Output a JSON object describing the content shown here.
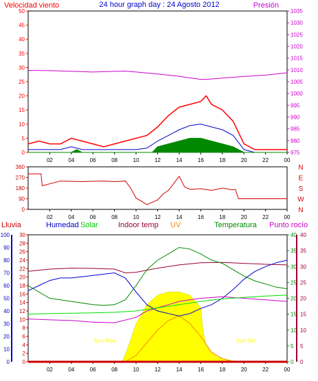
{
  "chart_data": [
    {
      "type": "line",
      "title": "24 hour graph day : 24 Agosto 2012",
      "y_left_label": "Velocidad viento",
      "y_right_label": "Presión",
      "y_left_ticks": [
        0,
        5,
        10,
        15,
        20,
        25,
        30,
        35,
        40,
        45,
        50
      ],
      "y_right_ticks": [
        975,
        980,
        985,
        990,
        995,
        1000,
        1005,
        1010,
        1015,
        1020,
        1025,
        1030,
        1035
      ],
      "ylim_left": [
        0,
        50
      ],
      "ylim_right": [
        975,
        1035
      ],
      "x_ticks": [
        "02",
        "04",
        "06",
        "08",
        "10",
        "12",
        "14",
        "16",
        "18",
        "20",
        "22",
        "00"
      ],
      "xlim": [
        0,
        24
      ],
      "colors": {
        "gust": "#ff0000",
        "speed": "#0000cc",
        "calm": "#008800",
        "pressure": "#cc00cc"
      },
      "series": [
        {
          "kind": "pressure",
          "axis": "right",
          "color": "#cc00cc",
          "x": [
            0,
            2,
            4,
            6,
            8,
            9,
            10,
            12,
            14,
            15,
            16,
            16.5,
            18,
            20,
            22,
            24
          ],
          "y": [
            1009.8,
            1009.7,
            1009.4,
            1009.1,
            1009.4,
            1009.5,
            1009.1,
            1008.3,
            1007.3,
            1006.6,
            1006.0,
            1006.0,
            1006.5,
            1007.2,
            1007.8,
            1008.8
          ]
        },
        {
          "kind": "gust",
          "axis": "left",
          "color": "#ff0000",
          "x": [
            0,
            1,
            2,
            3,
            4,
            5,
            6,
            7,
            8,
            9,
            10,
            11,
            12,
            13,
            14,
            15,
            16,
            16.5,
            17,
            18,
            19,
            20,
            21,
            22,
            23,
            24
          ],
          "y": [
            3,
            4,
            3,
            3,
            5,
            4,
            3,
            2,
            3,
            4,
            5,
            6,
            9,
            13,
            16,
            17,
            18,
            20,
            17,
            15,
            11,
            3,
            1,
            1,
            1,
            1
          ]
        },
        {
          "kind": "speed",
          "axis": "left",
          "color": "#0000cc",
          "x": [
            0,
            2,
            3,
            4,
            5,
            6,
            7,
            8,
            9,
            10,
            11,
            12,
            13,
            14,
            15,
            16,
            17,
            18,
            19,
            20,
            21,
            22,
            24
          ],
          "y": [
            1,
            1,
            1,
            2,
            1,
            1,
            1,
            1,
            1,
            1,
            1.5,
            4,
            6,
            8,
            9.5,
            10,
            9,
            8,
            6,
            1,
            0,
            0,
            0
          ]
        },
        {
          "kind": "calm",
          "axis": "left",
          "color": "#008800",
          "x": [
            0,
            4,
            4.5,
            5,
            8,
            11.5,
            12,
            13,
            14,
            15,
            16,
            17,
            18,
            19,
            19.5,
            20,
            24
          ],
          "y": [
            0,
            0,
            1,
            0,
            0,
            0,
            2,
            3,
            4,
            5,
            5,
            4,
            3,
            2,
            1,
            0,
            0
          ]
        }
      ]
    },
    {
      "type": "line",
      "y_left_ticks": [
        0,
        90,
        180,
        270,
        360
      ],
      "y_right_ticks": [
        "N",
        "W",
        "S",
        "E",
        "N"
      ],
      "ylim_left": [
        0,
        360
      ],
      "x_ticks": [
        "02",
        "04",
        "06",
        "08",
        "10",
        "12",
        "14",
        "16",
        "18",
        "20",
        "22",
        "00"
      ],
      "xlim": [
        0,
        24
      ],
      "colors": {
        "direction": "#cc0000"
      },
      "series": [
        {
          "kind": "direction",
          "color": "#cc0000",
          "x": [
            0,
            1.2,
            1.3,
            3,
            5,
            7,
            8,
            9,
            9.5,
            10,
            10.5,
            11,
            11.5,
            12,
            12.5,
            13,
            13.5,
            14,
            14.5,
            15,
            16,
            17,
            18,
            19,
            19.2,
            19.5,
            24
          ],
          "y": [
            300,
            300,
            200,
            240,
            235,
            240,
            235,
            240,
            180,
            95,
            70,
            40,
            60,
            80,
            130,
            160,
            220,
            280,
            190,
            170,
            175,
            160,
            180,
            165,
            170,
            90,
            90
          ]
        }
      ]
    },
    {
      "type": "line",
      "legend": [
        "Lluvia",
        "Humedad",
        "Solar",
        "Indoor temp",
        "UV",
        "Temperatura",
        "Punto rocío"
      ],
      "left_axes": {
        "outer": [
          0,
          10,
          20,
          30,
          40,
          50,
          60,
          70,
          80,
          90,
          100
        ],
        "inner": [
          0,
          2,
          4,
          6,
          8,
          10,
          12,
          14,
          16,
          18,
          20,
          22,
          24,
          26,
          28,
          30
        ]
      },
      "right_axes": {
        "inner": [
          0,
          5,
          10,
          15,
          20,
          25,
          30,
          35,
          40
        ],
        "outer": [
          0,
          5,
          10,
          15,
          20,
          25,
          30,
          35,
          40
        ]
      },
      "annotations": [
        "Sun Rise",
        "Sun Set"
      ],
      "x_ticks": [
        "02",
        "04",
        "06",
        "08",
        "10",
        "12",
        "14",
        "16",
        "18",
        "20",
        "22",
        "00"
      ],
      "xlim": [
        0,
        24
      ],
      "colors": {
        "rain": "#cc0000",
        "humidity": "#0000cc",
        "solar": "#ffff00",
        "solar_edge": "#cccc00",
        "indoor": "#990033",
        "uv": "#ff8800",
        "temperature": "#008800",
        "dewpoint": "#cc00cc",
        "solar_line": "#00dd00"
      },
      "series": [
        {
          "kind": "solar",
          "scale": "right-inner",
          "color": "#ffff00",
          "x": [
            0,
            8.7,
            9.2,
            10,
            11,
            12,
            13,
            14,
            15,
            16,
            16.2,
            16.5,
            17,
            17.5,
            18,
            19,
            20,
            24
          ],
          "y": [
            0,
            0,
            4,
            12,
            18,
            21,
            22,
            22,
            21,
            17,
            10,
            5,
            3,
            1.5,
            1,
            0.3,
            0,
            0
          ]
        },
        {
          "kind": "uv",
          "scale": "right-inner",
          "color": "#ff8800",
          "x": [
            0,
            9,
            10,
            11,
            12,
            13,
            14,
            15,
            16,
            17,
            18,
            19,
            24
          ],
          "y": [
            0,
            0,
            2,
            6,
            10,
            13,
            14.5,
            12,
            8,
            3,
            1,
            0,
            0
          ]
        },
        {
          "kind": "indoor",
          "scale": "right-inner",
          "color": "#990033",
          "x": [
            0,
            2,
            4,
            6,
            8,
            9,
            10,
            12,
            14,
            16,
            18,
            20,
            22,
            24
          ],
          "y": [
            28.5,
            29.2,
            29.5,
            29.4,
            29.2,
            28.0,
            28.2,
            29.5,
            30.5,
            31.2,
            31.3,
            31.0,
            30.7,
            30.5
          ]
        },
        {
          "kind": "humidity",
          "scale": "left-outer",
          "color": "#0000cc",
          "x": [
            0,
            1,
            2,
            3,
            4,
            5,
            6,
            7,
            8,
            9,
            10,
            11,
            12,
            13,
            14,
            15,
            16,
            17,
            18,
            19,
            20,
            21,
            22,
            23,
            24
          ],
          "y": [
            56,
            60,
            64,
            66,
            66,
            67,
            68,
            69,
            70,
            66,
            55,
            45,
            40,
            38,
            36,
            38,
            42,
            45,
            50,
            57,
            65,
            71,
            75,
            78,
            80
          ]
        },
        {
          "kind": "temperature",
          "scale": "right-inner",
          "color": "#008800",
          "x": [
            0,
            1,
            2,
            3,
            4,
            5,
            6,
            7,
            8,
            9,
            10,
            11,
            12,
            13,
            14,
            15,
            16,
            17,
            18,
            19,
            20,
            21,
            22,
            23,
            24
          ],
          "y": [
            24,
            22,
            20,
            19.5,
            19,
            18.5,
            18,
            17.8,
            18,
            19.5,
            24,
            29,
            32,
            34,
            36,
            35.5,
            34,
            32,
            31,
            29,
            27,
            25.5,
            24.5,
            23.5,
            23
          ]
        },
        {
          "kind": "dewpoint",
          "scale": "right-inner",
          "color": "#cc00cc",
          "x": [
            0,
            2,
            4,
            6,
            8,
            10,
            11,
            12,
            13,
            14,
            16,
            18,
            20,
            22,
            24
          ],
          "y": [
            13.5,
            13.2,
            13,
            12.5,
            12.3,
            14,
            16,
            17,
            18,
            19,
            20,
            20.5,
            20,
            19.5,
            19
          ]
        },
        {
          "kind": "solar_line",
          "scale": "right-inner",
          "color": "#00dd00",
          "x": [
            0,
            2,
            4,
            6,
            8,
            10,
            12,
            14,
            16,
            18,
            20,
            22,
            24
          ],
          "y": [
            15,
            15.2,
            15.3,
            15.4,
            15.6,
            16,
            17,
            18,
            19,
            19.8,
            20.3,
            20.7,
            21
          ]
        },
        {
          "kind": "rain",
          "scale": "left-inner",
          "color": "#cc0000",
          "x": [
            0,
            24
          ],
          "y": [
            0,
            0
          ]
        }
      ]
    }
  ]
}
